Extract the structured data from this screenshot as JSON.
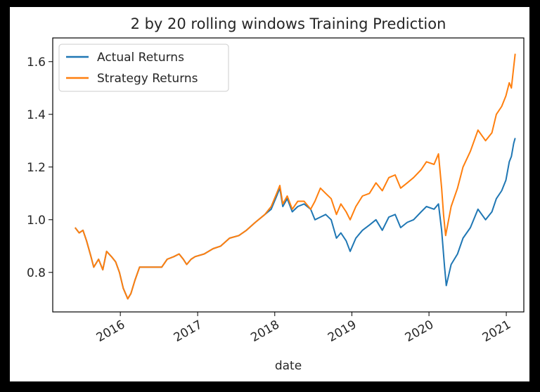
{
  "chart_data": {
    "type": "line",
    "title": "2 by 20 rolling windows Training Prediction",
    "xlabel": "date",
    "ylabel": "",
    "x_axis": "date",
    "xlim": [
      "2015-02-15",
      "2021-03-25"
    ],
    "ylim": [
      0.65,
      1.69
    ],
    "yticks": [
      0.8,
      1.0,
      1.2,
      1.4,
      1.6
    ],
    "ytick_labels": [
      "0.8",
      "1.0",
      "1.2",
      "1.4",
      "1.6"
    ],
    "xticks": [
      "2016-01-01",
      "2017-01-01",
      "2018-01-01",
      "2019-01-01",
      "2020-01-01",
      "2021-01-01"
    ],
    "xtick_labels": [
      "2016",
      "2017",
      "2018",
      "2019",
      "2020",
      "2021"
    ],
    "grid": false,
    "legend_position": "top-left",
    "series": [
      {
        "name": "Actual Returns",
        "color": "#1f77b4",
        "points": [
          [
            "2015-06-01",
            0.97
          ],
          [
            "2015-06-20",
            0.95
          ],
          [
            "2015-07-08",
            0.96
          ],
          [
            "2015-07-25",
            0.92
          ],
          [
            "2015-08-15",
            0.86
          ],
          [
            "2015-08-28",
            0.82
          ],
          [
            "2015-09-20",
            0.85
          ],
          [
            "2015-10-10",
            0.81
          ],
          [
            "2015-10-28",
            0.88
          ],
          [
            "2015-11-20",
            0.86
          ],
          [
            "2015-12-10",
            0.84
          ],
          [
            "2015-12-28",
            0.8
          ],
          [
            "2016-01-15",
            0.74
          ],
          [
            "2016-02-05",
            0.7
          ],
          [
            "2016-02-20",
            0.72
          ],
          [
            "2016-03-10",
            0.77
          ],
          [
            "2016-04-01",
            0.82
          ],
          [
            "2016-06-01",
            0.82
          ],
          [
            "2016-07-15",
            0.82
          ],
          [
            "2016-08-10",
            0.85
          ],
          [
            "2016-09-10",
            0.86
          ],
          [
            "2016-10-05",
            0.87
          ],
          [
            "2016-10-25",
            0.85
          ],
          [
            "2016-11-10",
            0.83
          ],
          [
            "2016-12-01",
            0.85
          ],
          [
            "2016-12-20",
            0.86
          ],
          [
            "2017-02-01",
            0.87
          ],
          [
            "2017-03-15",
            0.89
          ],
          [
            "2017-04-20",
            0.9
          ],
          [
            "2017-06-01",
            0.93
          ],
          [
            "2017-07-15",
            0.94
          ],
          [
            "2017-08-20",
            0.96
          ],
          [
            "2017-10-01",
            0.99
          ],
          [
            "2017-11-15",
            1.02
          ],
          [
            "2017-12-15",
            1.04
          ],
          [
            "2018-01-10",
            1.09
          ],
          [
            "2018-01-25",
            1.12
          ],
          [
            "2018-02-08",
            1.05
          ],
          [
            "2018-03-01",
            1.08
          ],
          [
            "2018-03-25",
            1.03
          ],
          [
            "2018-04-20",
            1.05
          ],
          [
            "2018-05-20",
            1.06
          ],
          [
            "2018-06-20",
            1.04
          ],
          [
            "2018-07-10",
            1.0
          ],
          [
            "2018-08-05",
            1.01
          ],
          [
            "2018-08-30",
            1.02
          ],
          [
            "2018-09-25",
            1.0
          ],
          [
            "2018-10-20",
            0.93
          ],
          [
            "2018-11-10",
            0.95
          ],
          [
            "2018-12-05",
            0.92
          ],
          [
            "2018-12-24",
            0.88
          ],
          [
            "2019-01-20",
            0.93
          ],
          [
            "2019-02-20",
            0.96
          ],
          [
            "2019-03-25",
            0.98
          ],
          [
            "2019-04-25",
            1.0
          ],
          [
            "2019-05-25",
            0.96
          ],
          [
            "2019-06-25",
            1.01
          ],
          [
            "2019-07-25",
            1.02
          ],
          [
            "2019-08-20",
            0.97
          ],
          [
            "2019-09-20",
            0.99
          ],
          [
            "2019-10-20",
            1.0
          ],
          [
            "2019-11-25",
            1.03
          ],
          [
            "2019-12-20",
            1.05
          ],
          [
            "2020-01-25",
            1.04
          ],
          [
            "2020-02-15",
            1.06
          ],
          [
            "2020-03-01",
            0.96
          ],
          [
            "2020-03-15",
            0.82
          ],
          [
            "2020-03-23",
            0.75
          ],
          [
            "2020-04-15",
            0.83
          ],
          [
            "2020-05-15",
            0.87
          ],
          [
            "2020-06-10",
            0.93
          ],
          [
            "2020-07-15",
            0.97
          ],
          [
            "2020-08-20",
            1.04
          ],
          [
            "2020-09-25",
            1.0
          ],
          [
            "2020-10-25",
            1.03
          ],
          [
            "2020-11-15",
            1.08
          ],
          [
            "2020-12-10",
            1.11
          ],
          [
            "2020-12-30",
            1.15
          ],
          [
            "2021-01-15",
            1.22
          ],
          [
            "2021-01-25",
            1.24
          ],
          [
            "2021-02-05",
            1.29
          ],
          [
            "2021-02-12",
            1.31
          ]
        ]
      },
      {
        "name": "Strategy Returns",
        "color": "#ff7f0e",
        "points": [
          [
            "2015-06-01",
            0.97
          ],
          [
            "2015-06-20",
            0.95
          ],
          [
            "2015-07-08",
            0.96
          ],
          [
            "2015-07-25",
            0.92
          ],
          [
            "2015-08-15",
            0.86
          ],
          [
            "2015-08-28",
            0.82
          ],
          [
            "2015-09-20",
            0.85
          ],
          [
            "2015-10-10",
            0.81
          ],
          [
            "2015-10-28",
            0.88
          ],
          [
            "2015-11-20",
            0.86
          ],
          [
            "2015-12-10",
            0.84
          ],
          [
            "2015-12-28",
            0.8
          ],
          [
            "2016-01-15",
            0.74
          ],
          [
            "2016-02-05",
            0.7
          ],
          [
            "2016-02-20",
            0.72
          ],
          [
            "2016-03-10",
            0.77
          ],
          [
            "2016-04-01",
            0.82
          ],
          [
            "2016-06-01",
            0.82
          ],
          [
            "2016-07-15",
            0.82
          ],
          [
            "2016-08-10",
            0.85
          ],
          [
            "2016-09-10",
            0.86
          ],
          [
            "2016-10-05",
            0.87
          ],
          [
            "2016-10-25",
            0.85
          ],
          [
            "2016-11-10",
            0.83
          ],
          [
            "2016-12-01",
            0.85
          ],
          [
            "2016-12-20",
            0.86
          ],
          [
            "2017-02-01",
            0.87
          ],
          [
            "2017-03-15",
            0.89
          ],
          [
            "2017-04-20",
            0.9
          ],
          [
            "2017-06-01",
            0.93
          ],
          [
            "2017-07-15",
            0.94
          ],
          [
            "2017-08-20",
            0.96
          ],
          [
            "2017-10-01",
            0.99
          ],
          [
            "2017-11-15",
            1.02
          ],
          [
            "2017-12-15",
            1.05
          ],
          [
            "2018-01-10",
            1.1
          ],
          [
            "2018-01-25",
            1.13
          ],
          [
            "2018-02-08",
            1.06
          ],
          [
            "2018-03-01",
            1.09
          ],
          [
            "2018-03-25",
            1.04
          ],
          [
            "2018-04-20",
            1.07
          ],
          [
            "2018-05-20",
            1.07
          ],
          [
            "2018-06-20",
            1.04
          ],
          [
            "2018-07-10",
            1.07
          ],
          [
            "2018-08-05",
            1.12
          ],
          [
            "2018-08-30",
            1.1
          ],
          [
            "2018-09-25",
            1.08
          ],
          [
            "2018-10-20",
            1.02
          ],
          [
            "2018-11-10",
            1.06
          ],
          [
            "2018-12-05",
            1.03
          ],
          [
            "2018-12-24",
            1.0
          ],
          [
            "2019-01-20",
            1.05
          ],
          [
            "2019-02-20",
            1.09
          ],
          [
            "2019-03-25",
            1.1
          ],
          [
            "2019-04-25",
            1.14
          ],
          [
            "2019-05-25",
            1.11
          ],
          [
            "2019-06-25",
            1.16
          ],
          [
            "2019-07-25",
            1.17
          ],
          [
            "2019-08-20",
            1.12
          ],
          [
            "2019-09-20",
            1.14
          ],
          [
            "2019-10-20",
            1.16
          ],
          [
            "2019-11-25",
            1.19
          ],
          [
            "2019-12-20",
            1.22
          ],
          [
            "2020-01-25",
            1.21
          ],
          [
            "2020-02-15",
            1.25
          ],
          [
            "2020-03-01",
            1.12
          ],
          [
            "2020-03-10",
            1.02
          ],
          [
            "2020-03-20",
            0.94
          ],
          [
            "2020-04-15",
            1.05
          ],
          [
            "2020-05-15",
            1.12
          ],
          [
            "2020-06-10",
            1.2
          ],
          [
            "2020-07-15",
            1.26
          ],
          [
            "2020-08-20",
            1.34
          ],
          [
            "2020-09-25",
            1.3
          ],
          [
            "2020-10-25",
            1.33
          ],
          [
            "2020-11-15",
            1.4
          ],
          [
            "2020-12-10",
            1.43
          ],
          [
            "2020-12-30",
            1.47
          ],
          [
            "2021-01-15",
            1.52
          ],
          [
            "2021-01-25",
            1.5
          ],
          [
            "2021-02-05",
            1.58
          ],
          [
            "2021-02-12",
            1.63
          ]
        ]
      }
    ]
  }
}
